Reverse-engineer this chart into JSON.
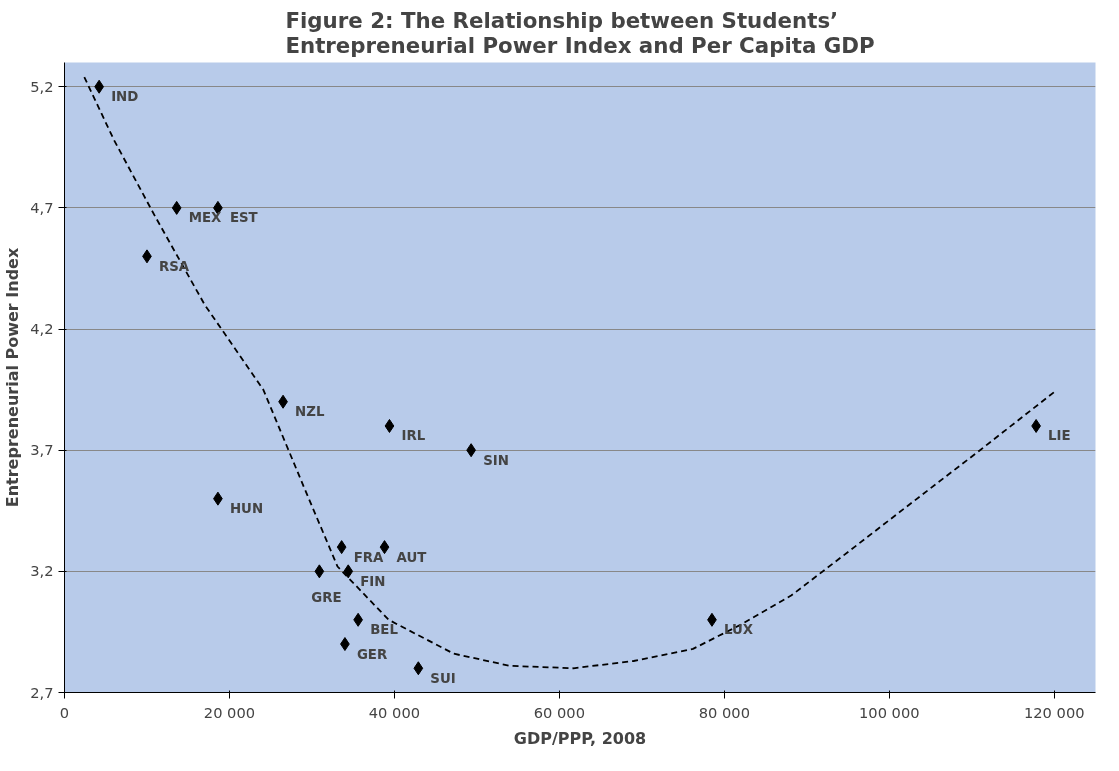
{
  "chart_data": {
    "type": "scatter",
    "title": "Figure 2: The Relationship between Students’\nEntrepreneurial Power Index and Per Capita GDP",
    "xlabel": "GDP/PPP, 2008",
    "ylabel": "Entrepreneurial Power Index",
    "xlim": [
      0,
      125000
    ],
    "ylim": [
      2.7,
      5.3
    ],
    "xticks": [
      {
        "value": 0,
        "label": "0"
      },
      {
        "value": 20000,
        "label": "20 000"
      },
      {
        "value": 40000,
        "label": "40 000"
      },
      {
        "value": 60000,
        "label": "60 000"
      },
      {
        "value": 80000,
        "label": "80 000"
      },
      {
        "value": 100000,
        "label": "100 000"
      },
      {
        "value": 120000,
        "label": "120 000"
      }
    ],
    "yticks": [
      {
        "value": 2.7,
        "label": "2,7"
      },
      {
        "value": 3.2,
        "label": "3,2"
      },
      {
        "value": 3.7,
        "label": "3,7"
      },
      {
        "value": 4.2,
        "label": "4,2"
      },
      {
        "value": 4.7,
        "label": "4,7"
      },
      {
        "value": 5.2,
        "label": "5,2"
      }
    ],
    "grid": "y",
    "series": [
      {
        "marker": "diamond",
        "color": "#000000",
        "x": [
          4200,
          13600,
          18600,
          10000,
          26500,
          39400,
          49300,
          117800,
          18600,
          33600,
          38800,
          30900,
          34400,
          35600,
          78500,
          34000,
          42900
        ],
        "values": [
          5.2,
          4.7,
          4.7,
          4.5,
          3.9,
          3.8,
          3.7,
          3.8,
          3.5,
          3.3,
          3.3,
          3.2,
          3.2,
          3.0,
          3.0,
          2.9,
          2.8
        ]
      },
      {
        "type": "line",
        "color": "#000000",
        "line_style": "dashed",
        "x": [
          2400,
          6000,
          10900,
          17000,
          24100,
          29000,
          33100,
          39300,
          47200,
          54000,
          61700,
          69000,
          76200,
          82000,
          88100,
          95000,
          102600,
          111000,
          120000
        ],
        "values": [
          5.24,
          4.98,
          4.67,
          4.3,
          3.95,
          3.55,
          3.22,
          3.0,
          2.86,
          2.81,
          2.8,
          2.83,
          2.88,
          2.98,
          3.1,
          3.28,
          3.48,
          3.7,
          3.94
        ]
      }
    ],
    "annotations": [
      {
        "text": "IND",
        "x": 4200,
        "y": 5.2
      },
      {
        "text": "MEX",
        "x": 13600,
        "y": 4.7
      },
      {
        "text": "EST",
        "x": 18600,
        "y": 4.7
      },
      {
        "text": "RSA",
        "x": 10000,
        "y": 4.5
      },
      {
        "text": "NZL",
        "x": 26500,
        "y": 3.9
      },
      {
        "text": "IRL",
        "x": 39400,
        "y": 3.8
      },
      {
        "text": "SIN",
        "x": 49300,
        "y": 3.7
      },
      {
        "text": "LIE",
        "x": 117800,
        "y": 3.8
      },
      {
        "text": "HUN",
        "x": 18600,
        "y": 3.5
      },
      {
        "text": "FRA",
        "x": 33600,
        "y": 3.3
      },
      {
        "text": "AUT",
        "x": 38800,
        "y": 3.3
      },
      {
        "text": "GRE",
        "x": 30900,
        "y": 3.2
      },
      {
        "text": "FIN",
        "x": 34400,
        "y": 3.2
      },
      {
        "text": "BEL",
        "x": 35600,
        "y": 3.0
      },
      {
        "text": "LUX",
        "x": 78500,
        "y": 3.0
      },
      {
        "text": "GER",
        "x": 34000,
        "y": 2.9
      },
      {
        "text": "SUI",
        "x": 42900,
        "y": 2.8
      }
    ]
  }
}
